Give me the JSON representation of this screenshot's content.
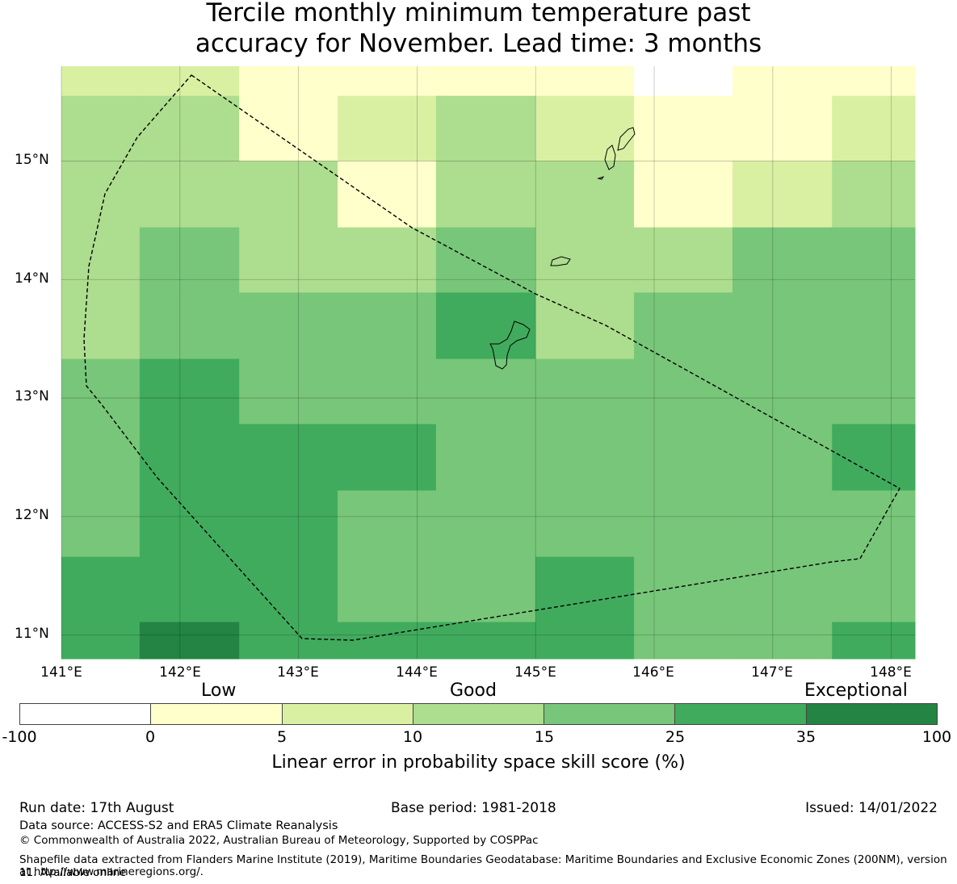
{
  "title": {
    "line1": "Tercile monthly minimum temperature past",
    "line2": "accuracy for November. Lead time: 3 months"
  },
  "map": {
    "lon_range": [
      141.0,
      148.2
    ],
    "lat_range": [
      10.8,
      15.8
    ],
    "x_ticks": [
      "141°E",
      "142°E",
      "143°E",
      "144°E",
      "145°E",
      "146°E",
      "147°E",
      "148°E"
    ],
    "y_ticks": [
      "15°N",
      "14°N",
      "13°N",
      "12°N"
    ],
    "y_ticks_bottom": "11°N",
    "colors": {
      "white": "#ffffff",
      "c0_5": "#ffffcc",
      "c5_10": "#d9f0a3",
      "c10_15": "#addd8e",
      "c15_25": "#78c679",
      "c25_35": "#41ab5d",
      "c35_100": "#238443"
    },
    "column_edges_lon": [
      141.0,
      141.66,
      142.5,
      143.33,
      144.16,
      145.0,
      145.83,
      146.66,
      147.5,
      148.2
    ],
    "row_edges_lat": [
      15.8,
      15.55,
      15.0,
      14.44,
      13.89,
      13.33,
      12.78,
      12.22,
      11.66,
      11.11,
      10.8
    ],
    "grid_classes": [
      [
        "c5_10",
        "c5_10",
        "c0_5",
        "c0_5",
        "c0_5",
        "c0_5",
        "white",
        "c0_5",
        "c0_5"
      ],
      [
        "c10_15",
        "c10_15",
        "c0_5",
        "c5_10",
        "c10_15",
        "c5_10",
        "c0_5",
        "c0_5",
        "c5_10"
      ],
      [
        "c10_15",
        "c10_15",
        "c10_15",
        "c0_5",
        "c10_15",
        "c10_15",
        "c0_5",
        "c5_10",
        "c10_15"
      ],
      [
        "c10_15",
        "c15_25",
        "c10_15",
        "c10_15",
        "c15_25",
        "c10_15",
        "c10_15",
        "c15_25",
        "c15_25"
      ],
      [
        "c10_15",
        "c15_25",
        "c15_25",
        "c15_25",
        "c25_35",
        "c10_15",
        "c15_25",
        "c15_25",
        "c15_25"
      ],
      [
        "c15_25",
        "c25_35",
        "c15_25",
        "c15_25",
        "c15_25",
        "c15_25",
        "c15_25",
        "c15_25",
        "c15_25"
      ],
      [
        "c15_25",
        "c25_35",
        "c25_35",
        "c25_35",
        "c15_25",
        "c15_25",
        "c15_25",
        "c15_25",
        "c25_35"
      ],
      [
        "c15_25",
        "c25_35",
        "c25_35",
        "c15_25",
        "c15_25",
        "c15_25",
        "c15_25",
        "c15_25",
        "c15_25"
      ],
      [
        "c25_35",
        "c25_35",
        "c25_35",
        "c15_25",
        "c15_25",
        "c25_35",
        "c15_25",
        "c15_25",
        "c15_25"
      ],
      [
        "c25_35",
        "c35_100",
        "c25_35",
        "c25_35",
        "c25_35",
        "c25_35",
        "c15_25",
        "c15_25",
        "c25_35"
      ]
    ]
  },
  "legend": {
    "categories": [
      "Low",
      "Good",
      "Exceptional"
    ],
    "colors": [
      "#ffffff",
      "#ffffcc",
      "#d9f0a3",
      "#addd8e",
      "#78c679",
      "#41ab5d",
      "#238443"
    ],
    "ticks": [
      "-100",
      "0",
      "5",
      "10",
      "15",
      "25",
      "35",
      "100"
    ],
    "label": "Linear error in probability space skill score (%)"
  },
  "footer": {
    "run_date": "Run date: 17th August",
    "base_period": "Base period: 1981-2018",
    "issued": "Issued: 14/01/2022",
    "data_source": "Data source: ACCESS-S2 and ERA5 Climate Reanalysis",
    "copyright": "© Commonwealth of Australia 2022, Australian Bureau of Meteorology, Supported by COSPPac",
    "shapefile_line1": "Shapefile data extracted from Flanders Marine Institute (2019), Maritime Boundaries Geodatabase: Maritime Boundaries and Exclusive Economic Zones (200NM), version 11. Available online",
    "shapefile_line2": "at http://www.marineregions.org/."
  }
}
